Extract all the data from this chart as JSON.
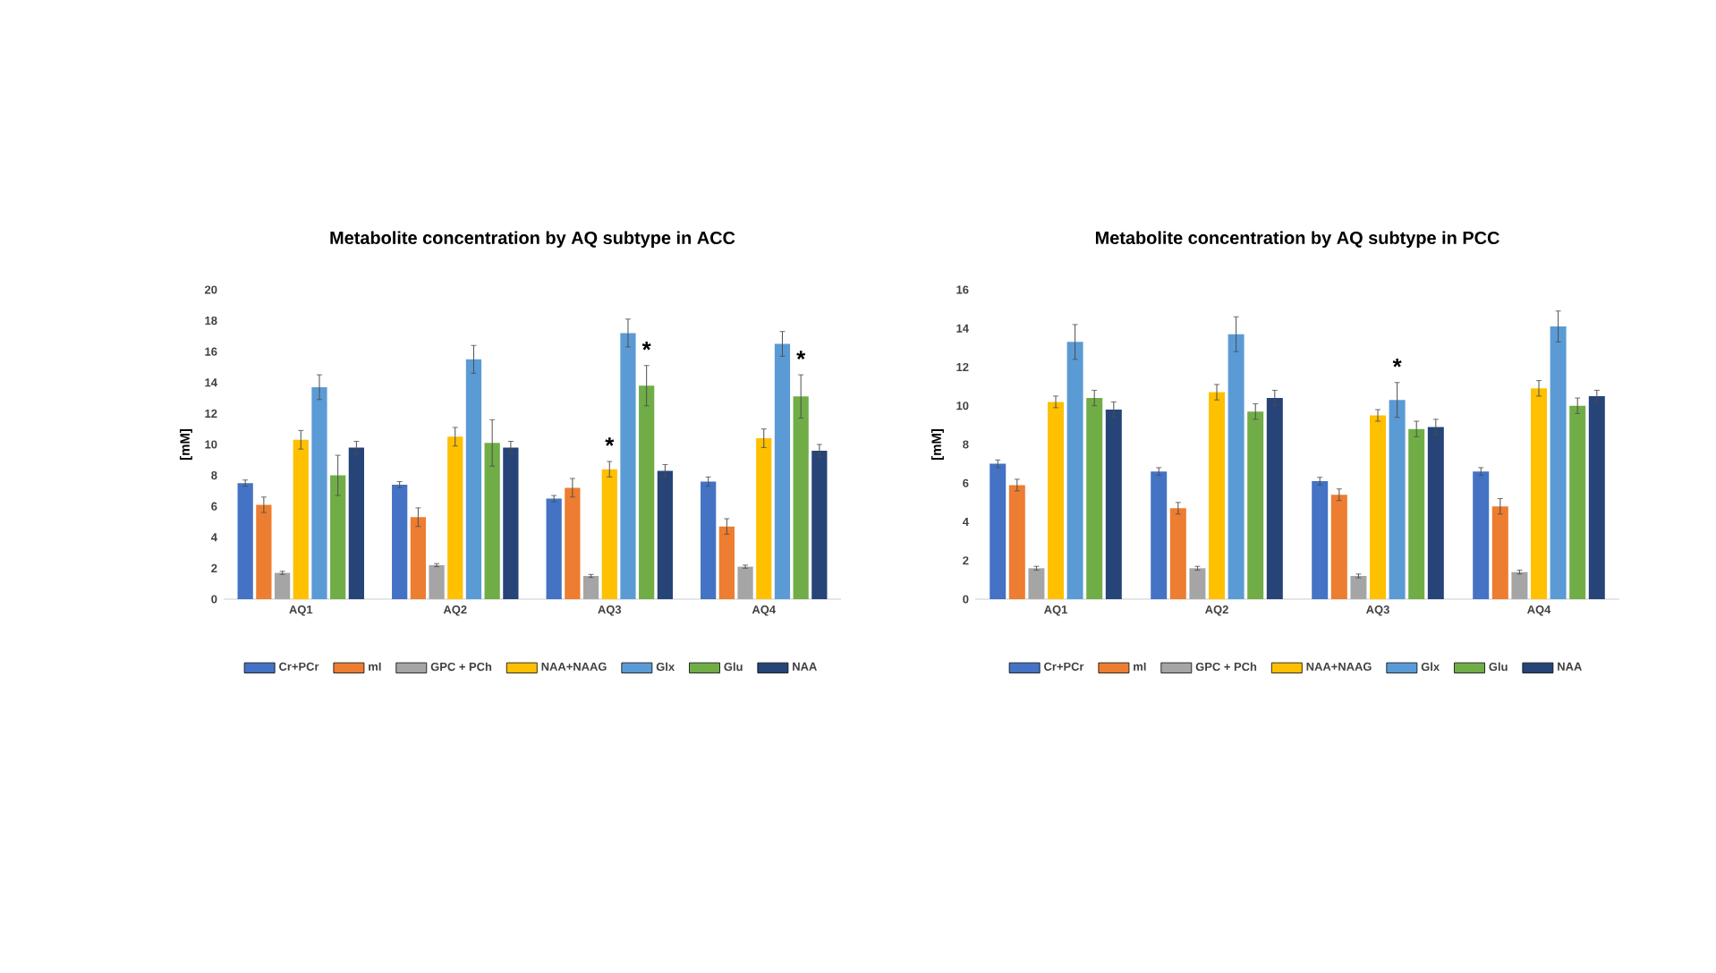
{
  "chart_data": [
    {
      "type": "bar",
      "title": "Metabolite concentration by AQ subtype in ACC",
      "ylabel": "[mM]",
      "categories": [
        "AQ1",
        "AQ2",
        "AQ3",
        "AQ4"
      ],
      "series": [
        {
          "name": "Cr+PCr",
          "color": "#4472c4",
          "values": [
            7.5,
            7.4,
            6.5,
            7.6
          ],
          "errors": [
            0.2,
            0.2,
            0.2,
            0.3
          ]
        },
        {
          "name": "mI",
          "color": "#ed7d31",
          "values": [
            6.1,
            5.3,
            7.2,
            4.7
          ],
          "errors": [
            0.5,
            0.6,
            0.6,
            0.5
          ]
        },
        {
          "name": "GPC + PCh",
          "color": "#a5a5a5",
          "values": [
            1.7,
            2.2,
            1.5,
            2.1
          ],
          "errors": [
            0.1,
            0.1,
            0.1,
            0.1
          ]
        },
        {
          "name": "NAA+NAAG",
          "color": "#ffc000",
          "values": [
            10.3,
            10.5,
            8.4,
            10.4
          ],
          "errors": [
            0.6,
            0.6,
            0.5,
            0.6
          ]
        },
        {
          "name": "Glx",
          "color": "#5b9bd5",
          "values": [
            13.7,
            15.5,
            17.2,
            16.5
          ],
          "errors": [
            0.8,
            0.9,
            0.9,
            0.8
          ]
        },
        {
          "name": "Glu",
          "color": "#70ad47",
          "values": [
            8.0,
            10.1,
            13.8,
            13.1
          ],
          "errors": [
            1.3,
            1.5,
            1.3,
            1.4
          ]
        },
        {
          "name": "NAA",
          "color": "#264478",
          "values": [
            9.8,
            9.8,
            8.3,
            9.6
          ],
          "errors": [
            0.4,
            0.4,
            0.4,
            0.4
          ]
        }
      ],
      "ylim": [
        0,
        20
      ],
      "yticks": [
        0,
        2,
        4,
        6,
        8,
        10,
        12,
        14,
        16,
        18,
        20
      ],
      "legend": "bottom",
      "annotations": [
        "*",
        "*",
        "*"
      ]
    },
    {
      "type": "bar",
      "title": "Metabolite concentration by AQ subtype in PCC",
      "ylabel": "[mM]",
      "categories": [
        "AQ1",
        "AQ2",
        "AQ3",
        "AQ4"
      ],
      "series": [
        {
          "name": "Cr+PCr",
          "color": "#4472c4",
          "values": [
            7.0,
            6.6,
            6.1,
            6.6
          ],
          "errors": [
            0.2,
            0.2,
            0.2,
            0.2
          ]
        },
        {
          "name": "mI",
          "color": "#ed7d31",
          "values": [
            5.9,
            4.7,
            5.4,
            4.8
          ],
          "errors": [
            0.3,
            0.3,
            0.3,
            0.4
          ]
        },
        {
          "name": "GPC + PCh",
          "color": "#a5a5a5",
          "values": [
            1.6,
            1.6,
            1.2,
            1.4
          ],
          "errors": [
            0.1,
            0.1,
            0.1,
            0.1
          ]
        },
        {
          "name": "NAA+NAAG",
          "color": "#ffc000",
          "values": [
            10.2,
            10.7,
            9.5,
            10.9
          ],
          "errors": [
            0.3,
            0.4,
            0.3,
            0.4
          ]
        },
        {
          "name": "Glx",
          "color": "#5b9bd5",
          "values": [
            13.3,
            13.7,
            10.3,
            14.1
          ],
          "errors": [
            0.9,
            0.9,
            0.9,
            0.8
          ]
        },
        {
          "name": "Glu",
          "color": "#70ad47",
          "values": [
            10.4,
            9.7,
            8.8,
            10.0
          ],
          "errors": [
            0.4,
            0.4,
            0.4,
            0.4
          ]
        },
        {
          "name": "NAA",
          "color": "#264478",
          "values": [
            9.8,
            10.4,
            8.9,
            10.5
          ],
          "errors": [
            0.4,
            0.4,
            0.4,
            0.3
          ]
        }
      ],
      "ylim": [
        0,
        16
      ],
      "yticks": [
        0,
        2,
        4,
        6,
        8,
        10,
        12,
        14,
        16
      ],
      "legend": "bottom",
      "annotations": [
        "*"
      ]
    }
  ]
}
